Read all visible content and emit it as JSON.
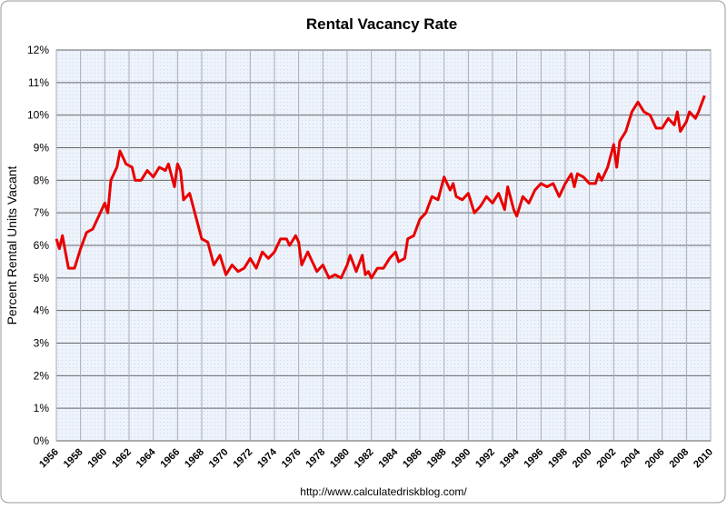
{
  "chart_data": {
    "type": "line",
    "title": "Rental Vacancy Rate",
    "ylabel": "Percent Rental Units Vacant",
    "source": "http://www.calculatedriskblog.com/",
    "x": [
      1956,
      1956.25,
      1956.5,
      1957,
      1957.5,
      1958,
      1958.5,
      1959,
      1959.5,
      1960,
      1960.25,
      1960.5,
      1961,
      1961.25,
      1961.75,
      1962.25,
      1962.5,
      1963,
      1963.5,
      1964,
      1964.5,
      1965,
      1965.25,
      1965.75,
      1966,
      1966.25,
      1966.5,
      1967,
      1967.5,
      1968,
      1968.5,
      1969,
      1969.5,
      1970,
      1970.5,
      1971,
      1971.5,
      1972,
      1972.5,
      1973,
      1973.5,
      1974,
      1974.5,
      1975,
      1975.25,
      1975.75,
      1976,
      1976.25,
      1976.75,
      1977,
      1977.5,
      1978,
      1978.5,
      1979,
      1979.5,
      1980,
      1980.25,
      1980.75,
      1981.25,
      1981.5,
      1981.75,
      1982,
      1982.5,
      1983,
      1983.5,
      1984,
      1984.25,
      1984.75,
      1985,
      1985.5,
      1986,
      1986.5,
      1987,
      1987.5,
      1988,
      1988.5,
      1988.75,
      1989,
      1989.5,
      1990,
      1990.5,
      1991,
      1991.5,
      1992,
      1992.5,
      1993,
      1993.25,
      1993.75,
      1994,
      1994.5,
      1995,
      1995.5,
      1996,
      1996.5,
      1997,
      1997.5,
      1998,
      1998.5,
      1998.75,
      1999,
      1999.5,
      2000,
      2000.5,
      2000.75,
      2001,
      2001.5,
      2002,
      2002.25,
      2002.5,
      2003,
      2003.5,
      2004,
      2004.5,
      2005,
      2005.5,
      2006,
      2006.5,
      2007,
      2007.25,
      2007.5,
      2008,
      2008.25,
      2008.75,
      2009,
      2009.5
    ],
    "series": [
      {
        "color": "#e80000",
        "values": [
          6.2,
          5.9,
          6.3,
          5.3,
          5.3,
          5.9,
          6.4,
          6.5,
          6.9,
          7.3,
          7.0,
          8.0,
          8.4,
          8.9,
          8.5,
          8.4,
          8.0,
          8.0,
          8.3,
          8.1,
          8.4,
          8.3,
          8.5,
          7.8,
          8.5,
          8.3,
          7.4,
          7.6,
          6.9,
          6.2,
          6.1,
          5.4,
          5.7,
          5.1,
          5.4,
          5.2,
          5.3,
          5.6,
          5.3,
          5.8,
          5.6,
          5.8,
          6.2,
          6.2,
          6.0,
          6.3,
          6.1,
          5.4,
          5.8,
          5.6,
          5.2,
          5.4,
          5.0,
          5.1,
          5.0,
          5.4,
          5.7,
          5.2,
          5.7,
          5.1,
          5.2,
          5.0,
          5.3,
          5.3,
          5.6,
          5.8,
          5.5,
          5.6,
          6.2,
          6.3,
          6.8,
          7.0,
          7.5,
          7.4,
          8.1,
          7.7,
          7.9,
          7.5,
          7.4,
          7.6,
          7.0,
          7.2,
          7.5,
          7.3,
          7.6,
          7.1,
          7.8,
          7.1,
          6.9,
          7.5,
          7.3,
          7.7,
          7.9,
          7.8,
          7.9,
          7.5,
          7.9,
          8.2,
          7.8,
          8.2,
          8.1,
          7.9,
          7.9,
          8.2,
          8.0,
          8.4,
          9.1,
          8.4,
          9.2,
          9.5,
          10.1,
          10.4,
          10.1,
          10.0,
          9.6,
          9.6,
          9.9,
          9.7,
          10.1,
          9.5,
          9.8,
          10.1,
          9.9,
          10.1,
          10.6
        ]
      }
    ],
    "xlim": [
      1956,
      2010
    ],
    "xticks": [
      1956,
      1958,
      1960,
      1962,
      1964,
      1966,
      1968,
      1970,
      1972,
      1974,
      1976,
      1978,
      1980,
      1982,
      1984,
      1986,
      1988,
      1990,
      1992,
      1994,
      1996,
      1998,
      2000,
      2002,
      2004,
      2006,
      2008,
      2010
    ],
    "ylim": [
      0,
      12
    ],
    "yticks": [
      {
        "value": 0,
        "label": "0%"
      },
      {
        "value": 1,
        "label": "1%"
      },
      {
        "value": 2,
        "label": "2%"
      },
      {
        "value": 3,
        "label": "3%"
      },
      {
        "value": 4,
        "label": "4%"
      },
      {
        "value": 5,
        "label": "5%"
      },
      {
        "value": 6,
        "label": "6%"
      },
      {
        "value": 7,
        "label": "7%"
      },
      {
        "value": 8,
        "label": "8%"
      },
      {
        "value": 9,
        "label": "9%"
      },
      {
        "value": 10,
        "label": "10%"
      },
      {
        "value": 11,
        "label": "11%"
      },
      {
        "value": 12,
        "label": "12%"
      }
    ],
    "grid": true
  }
}
